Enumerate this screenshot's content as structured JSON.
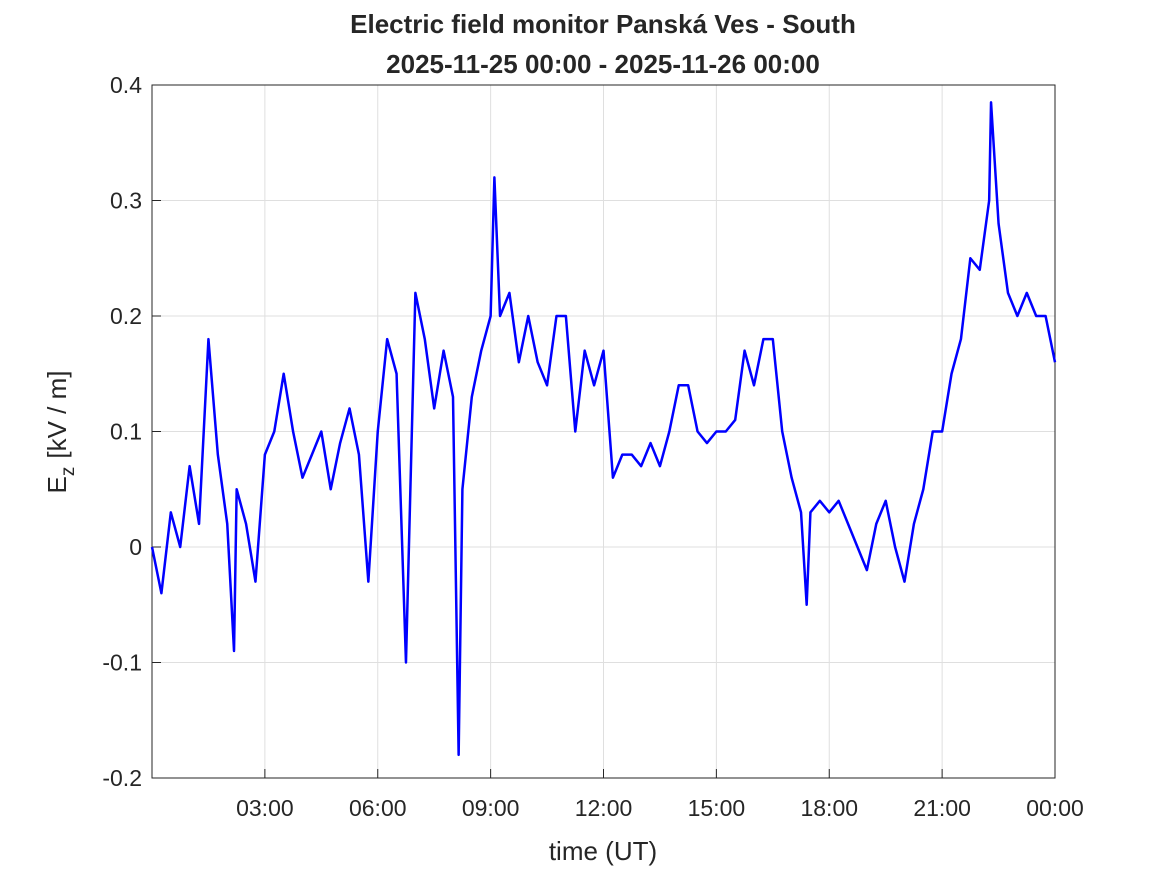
{
  "chart_data": {
    "type": "line",
    "title": "Electric field monitor Panská Ves - South",
    "subtitle": "2025-11-25 00:00 - 2025-11-26 00:00",
    "xlabel": "time (UT)",
    "ylabel": {
      "main": "E",
      "sub": "z",
      "unit": "[kV / m]"
    },
    "xlim": [
      0,
      24
    ],
    "xticks": [
      {
        "value": 3,
        "label": "03:00"
      },
      {
        "value": 6,
        "label": "06:00"
      },
      {
        "value": 9,
        "label": "09:00"
      },
      {
        "value": 12,
        "label": "12:00"
      },
      {
        "value": 15,
        "label": "15:00"
      },
      {
        "value": 18,
        "label": "18:00"
      },
      {
        "value": 21,
        "label": "21:00"
      },
      {
        "value": 24,
        "label": "00:00"
      }
    ],
    "ylim": [
      -0.2,
      0.4
    ],
    "yticks": [
      -0.2,
      -0.1,
      0,
      0.1,
      0.2,
      0.3,
      0.4
    ],
    "grid": true,
    "series": [
      {
        "name": "Ez",
        "color": "#0000ff",
        "x": [
          0,
          0.25,
          0.5,
          0.75,
          1,
          1.25,
          1.5,
          1.75,
          2,
          2.18,
          2.25,
          2.5,
          2.75,
          3,
          3.25,
          3.5,
          3.75,
          4,
          4.25,
          4.5,
          4.75,
          5,
          5.25,
          5.5,
          5.75,
          6,
          6.25,
          6.5,
          6.75,
          7,
          7.25,
          7.5,
          7.75,
          8,
          8.15,
          8.25,
          8.5,
          8.75,
          9,
          9.1,
          9.25,
          9.5,
          9.75,
          10,
          10.25,
          10.5,
          10.75,
          11,
          11.25,
          11.5,
          11.75,
          12,
          12.25,
          12.5,
          12.75,
          13,
          13.25,
          13.5,
          13.75,
          14,
          14.25,
          14.5,
          14.75,
          15,
          15.25,
          15.5,
          15.75,
          16,
          16.25,
          16.5,
          16.75,
          17,
          17.25,
          17.4,
          17.5,
          17.75,
          18,
          18.25,
          18.5,
          18.75,
          19,
          19.25,
          19.5,
          19.75,
          20,
          20.25,
          20.5,
          20.75,
          21,
          21.25,
          21.5,
          21.75,
          22,
          22.25,
          22.3,
          22.5,
          22.75,
          23,
          23.25,
          23.5,
          23.75,
          24
        ],
        "values": [
          0,
          -0.04,
          0.03,
          0,
          0.07,
          0.02,
          0.18,
          0.08,
          0.02,
          -0.09,
          0.05,
          0.02,
          -0.03,
          0.08,
          0.1,
          0.15,
          0.1,
          0.06,
          0.08,
          0.1,
          0.05,
          0.09,
          0.12,
          0.08,
          -0.03,
          0.1,
          0.18,
          0.15,
          -0.1,
          0.22,
          0.18,
          0.12,
          0.17,
          0.13,
          -0.18,
          0.05,
          0.13,
          0.17,
          0.2,
          0.32,
          0.2,
          0.22,
          0.16,
          0.2,
          0.16,
          0.14,
          0.2,
          0.2,
          0.1,
          0.17,
          0.14,
          0.17,
          0.06,
          0.08,
          0.08,
          0.07,
          0.09,
          0.07,
          0.1,
          0.14,
          0.14,
          0.1,
          0.09,
          0.1,
          0.1,
          0.11,
          0.17,
          0.14,
          0.18,
          0.18,
          0.1,
          0.06,
          0.03,
          -0.05,
          0.03,
          0.04,
          0.03,
          0.04,
          0.02,
          0,
          -0.02,
          0.02,
          0.04,
          0,
          -0.03,
          0.02,
          0.05,
          0.1,
          0.1,
          0.15,
          0.18,
          0.25,
          0.24,
          0.3,
          0.385,
          0.28,
          0.22,
          0.2,
          0.22,
          0.2,
          0.2,
          0.16
        ]
      }
    ]
  }
}
